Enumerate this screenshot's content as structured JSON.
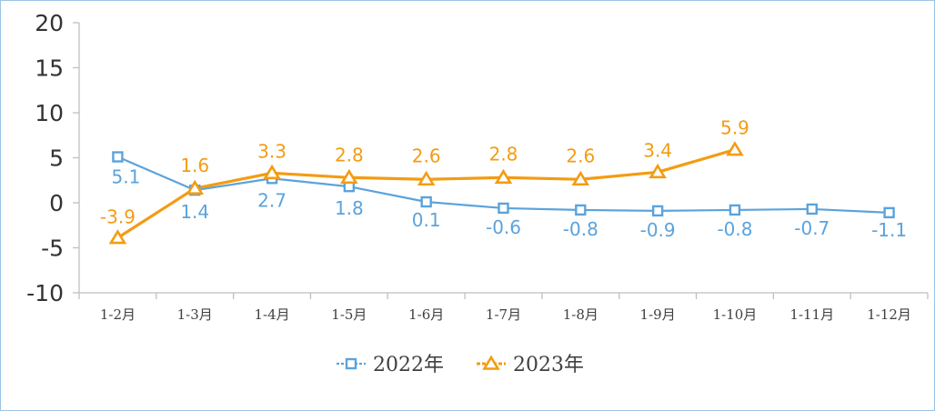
{
  "chart_data": {
    "type": "line",
    "categories": [
      "1-2月",
      "1-3月",
      "1-4月",
      "1-5月",
      "1-6月",
      "1-7月",
      "1-8月",
      "1-9月",
      "1-10月",
      "1-11月",
      "1-12月"
    ],
    "series": [
      {
        "name": "2022年",
        "color": "#5ba3dc",
        "marker": "square",
        "values": [
          5.1,
          1.4,
          2.7,
          1.8,
          0.1,
          -0.6,
          -0.8,
          -0.9,
          -0.8,
          -0.7,
          -1.1
        ],
        "labels": [
          "5.1",
          "1.4",
          "2.7",
          "1.8",
          "0.1",
          "-0.6",
          "-0.8",
          "-0.9",
          "-0.8",
          "-0.7",
          "-1.1"
        ]
      },
      {
        "name": "2023年",
        "color": "#f39c12",
        "marker": "triangle",
        "values": [
          -3.9,
          1.6,
          3.3,
          2.8,
          2.6,
          2.8,
          2.6,
          3.4,
          5.9,
          null,
          null
        ],
        "labels": [
          "-3.9",
          "1.6",
          "3.3",
          "2.8",
          "2.6",
          "2.8",
          "2.6",
          "3.4",
          "5.9",
          null,
          null
        ]
      }
    ],
    "yticks": [
      "20",
      "15",
      "10",
      "5",
      "0",
      "-5",
      "-10"
    ],
    "ylim": [
      -10,
      20
    ],
    "grid": false,
    "legend_position": "bottom"
  }
}
